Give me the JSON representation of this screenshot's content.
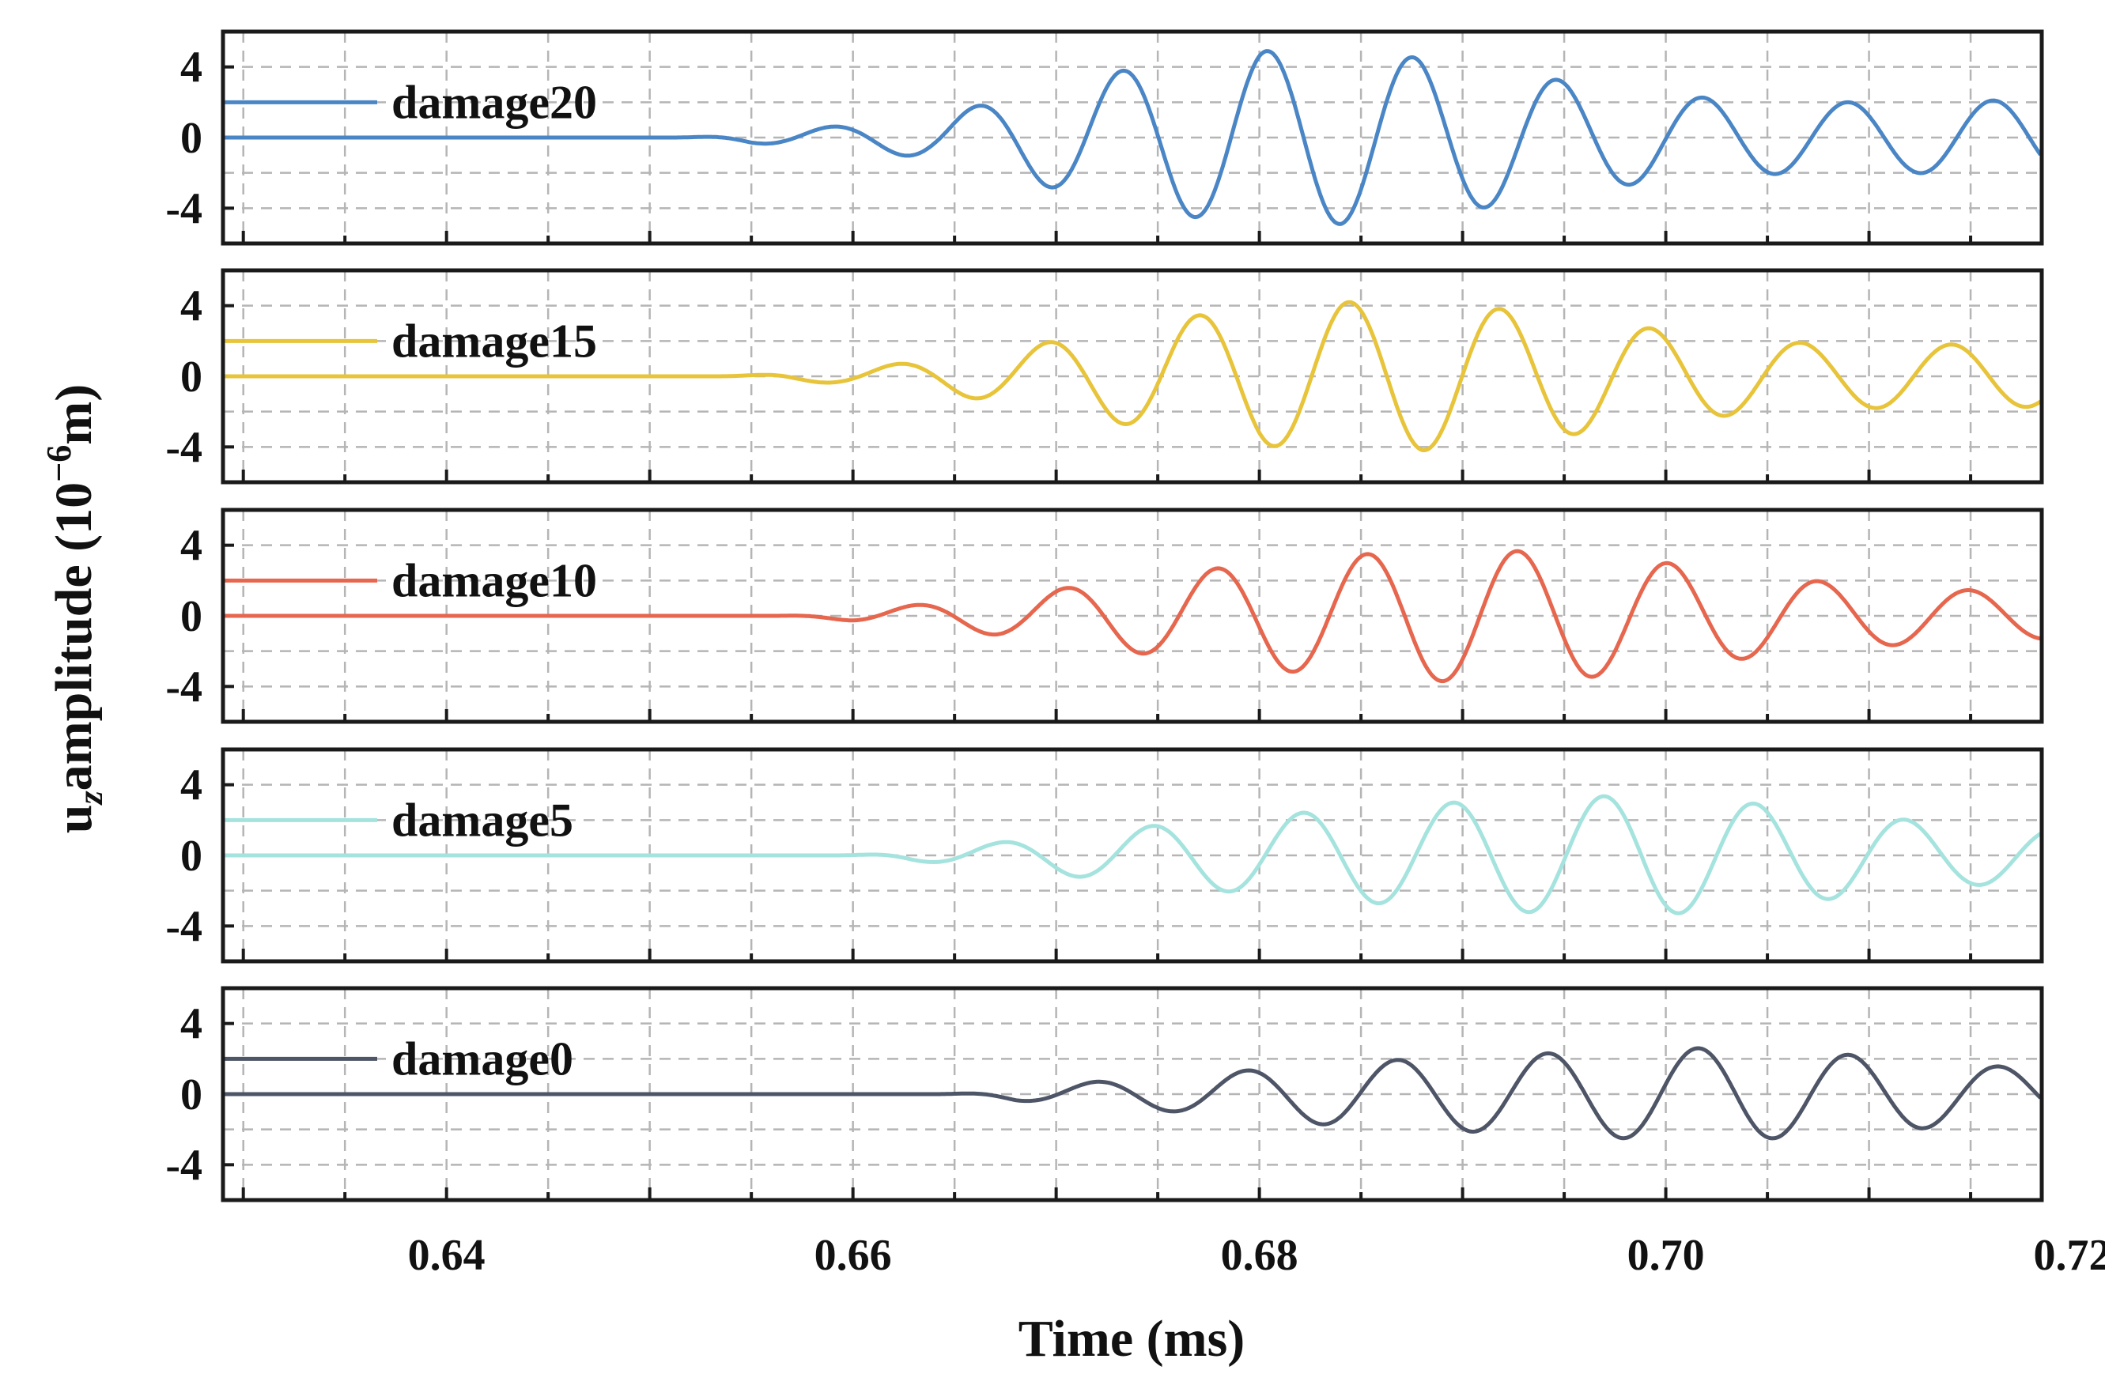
{
  "chart_data": {
    "type": "line",
    "layout": "stacked-subplots",
    "xlabel": "Time (ms)",
    "ylabel": "u_z amplitude (10^-6 m)",
    "ylabel_parts": {
      "u": "u",
      "z": "z",
      "amplitude": "amplitude (10",
      "exp": "−6",
      "unit": "m)"
    },
    "xlim": [
      0.629,
      0.7185
    ],
    "xticks": [
      0.64,
      0.66,
      0.68,
      0.7,
      0.72
    ],
    "xtick_labels": [
      "0.64",
      "0.66",
      "0.68",
      "0.70",
      "0.72"
    ],
    "ylim": [
      -6,
      6
    ],
    "yticks": [
      -4,
      0,
      4
    ],
    "ytick_labels": [
      "-4",
      "0",
      "4"
    ],
    "grid": true,
    "legend_position": "top-left of each panel",
    "series": [
      {
        "name": "damage20",
        "color": "#4a86c5",
        "onset": 0.651,
        "freq_khz": 140,
        "phase": 0.85,
        "envelope": {
          "t": [
            0.651,
            0.655,
            0.66,
            0.664,
            0.668,
            0.672,
            0.676,
            0.68,
            0.684,
            0.688,
            0.692,
            0.696,
            0.7,
            0.704,
            0.708,
            0.712,
            0.716,
            0.7185
          ],
          "a": [
            0,
            0.3,
            0.7,
            1.2,
            2.3,
            3.5,
            4.4,
            4.9,
            4.9,
            4.5,
            3.8,
            3.0,
            2.4,
            2.1,
            2.0,
            2.0,
            2.1,
            2.1
          ]
        }
      },
      {
        "name": "damage15",
        "color": "#e7c43a",
        "onset": 0.653,
        "freq_khz": 135,
        "phase": 0.05,
        "envelope": {
          "t": [
            0.653,
            0.657,
            0.66,
            0.664,
            0.668,
            0.672,
            0.676,
            0.68,
            0.684,
            0.688,
            0.692,
            0.696,
            0.7,
            0.704,
            0.708,
            0.712,
            0.716,
            0.7185
          ],
          "a": [
            0,
            0.25,
            0.45,
            0.9,
            1.6,
            2.4,
            3.3,
            3.9,
            4.2,
            4.2,
            3.8,
            3.2,
            2.6,
            2.1,
            1.8,
            1.8,
            1.8,
            1.7
          ]
        }
      },
      {
        "name": "damage10",
        "color": "#e6664e",
        "onset": 0.656,
        "freq_khz": 135,
        "phase": 1.85,
        "envelope": {
          "t": [
            0.656,
            0.66,
            0.664,
            0.668,
            0.672,
            0.676,
            0.68,
            0.684,
            0.688,
            0.692,
            0.696,
            0.7,
            0.704,
            0.708,
            0.712,
            0.716,
            0.7185
          ],
          "a": [
            0,
            0.3,
            0.7,
            1.2,
            1.8,
            2.4,
            3.0,
            3.4,
            3.7,
            3.7,
            3.5,
            3.0,
            2.4,
            1.9,
            1.6,
            1.4,
            1.3
          ]
        }
      },
      {
        "name": "damage5",
        "color": "#a5e3de",
        "onset": 0.659,
        "freq_khz": 135,
        "phase": 0.8,
        "envelope": {
          "t": [
            0.659,
            0.663,
            0.667,
            0.671,
            0.675,
            0.679,
            0.683,
            0.687,
            0.691,
            0.695,
            0.699,
            0.703,
            0.707,
            0.711,
            0.715,
            0.7185
          ],
          "a": [
            0,
            0.3,
            0.7,
            1.2,
            1.7,
            2.1,
            2.5,
            2.8,
            3.1,
            3.3,
            3.4,
            3.1,
            2.6,
            2.1,
            1.7,
            1.5
          ]
        }
      },
      {
        "name": "damage0",
        "color": "#4d5566",
        "onset": 0.664,
        "freq_khz": 135,
        "phase": 1.1,
        "envelope": {
          "t": [
            0.664,
            0.668,
            0.672,
            0.676,
            0.68,
            0.684,
            0.688,
            0.692,
            0.696,
            0.7,
            0.704,
            0.708,
            0.712,
            0.716,
            0.7185
          ],
          "a": [
            0,
            0.35,
            0.7,
            1.0,
            1.4,
            1.8,
            2.0,
            2.2,
            2.4,
            2.6,
            2.6,
            2.3,
            2.0,
            1.6,
            1.4
          ]
        }
      }
    ]
  }
}
